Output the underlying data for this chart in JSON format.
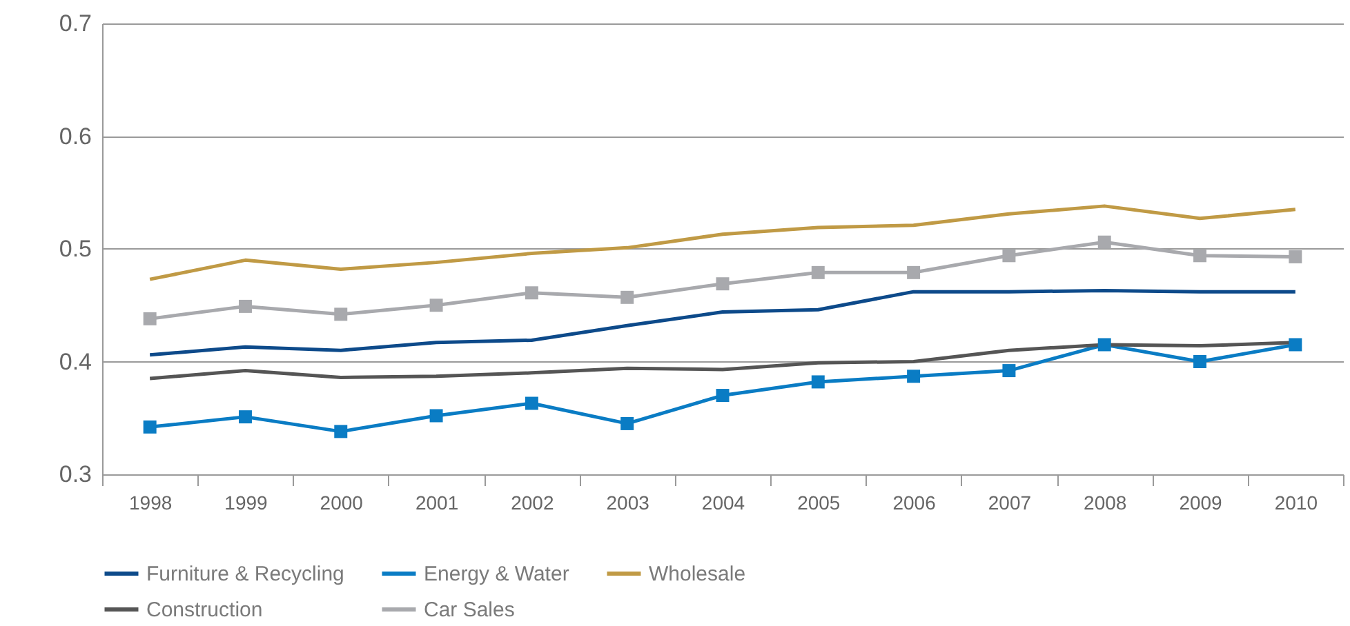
{
  "chart_data": {
    "type": "line",
    "categories": [
      "1998",
      "1999",
      "2000",
      "2001",
      "2002",
      "2003",
      "2004",
      "2005",
      "2006",
      "2007",
      "2008",
      "2009",
      "2010"
    ],
    "ylim": [
      0.3,
      0.7
    ],
    "yticks": [
      0.3,
      0.4,
      0.5,
      0.6,
      0.7
    ],
    "grid": "y",
    "legend": "bottom",
    "line_style": "solid",
    "series": [
      {
        "name": "Furniture & Recycling",
        "color": "#0d4a8a",
        "marker": "none",
        "values": [
          0.406,
          0.413,
          0.41,
          0.417,
          0.419,
          0.432,
          0.444,
          0.446,
          0.462,
          0.462,
          0.463,
          0.462,
          0.462
        ]
      },
      {
        "name": "Energy & Water",
        "color": "#0a7cc4",
        "marker": "square",
        "values": [
          0.342,
          0.351,
          0.338,
          0.352,
          0.363,
          0.345,
          0.37,
          0.382,
          0.387,
          0.392,
          0.415,
          0.4,
          0.415
        ]
      },
      {
        "name": "Wholesale",
        "color": "#c09a45",
        "marker": "none",
        "values": [
          0.473,
          0.49,
          0.482,
          0.488,
          0.496,
          0.501,
          0.513,
          0.519,
          0.521,
          0.531,
          0.538,
          0.527,
          0.535
        ]
      },
      {
        "name": "Construction",
        "color": "#555555",
        "marker": "none",
        "values": [
          0.385,
          0.392,
          0.386,
          0.387,
          0.39,
          0.394,
          0.393,
          0.399,
          0.4,
          0.41,
          0.415,
          0.414,
          0.417
        ]
      },
      {
        "name": "Car Sales",
        "color": "#a8a9ad",
        "marker": "square",
        "values": [
          0.438,
          0.449,
          0.442,
          0.45,
          0.461,
          0.457,
          0.469,
          0.479,
          0.479,
          0.494,
          0.506,
          0.494,
          0.493
        ]
      }
    ]
  }
}
